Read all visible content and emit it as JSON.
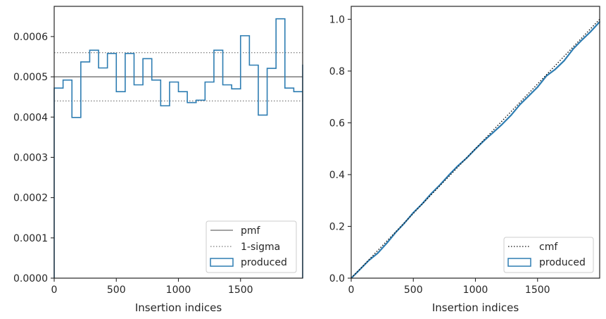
{
  "chart_data": [
    {
      "type": "histogram-step",
      "xlabel": "Insertion indices",
      "ylabel": "",
      "xlim": [
        0,
        2000
      ],
      "ylim": [
        0,
        0.000675
      ],
      "xticks": [
        0,
        500,
        1000,
        1500
      ],
      "xtick_labels": [
        "0",
        "500",
        "1000",
        "1500"
      ],
      "yticks": [
        0,
        0.0001,
        0.0002,
        0.0003,
        0.0004,
        0.0005,
        0.0006
      ],
      "ytick_labels": [
        "0.0000",
        "0.0001",
        "0.0002",
        "0.0003",
        "0.0004",
        "0.0005",
        "0.0006"
      ],
      "bin_width": 71.43,
      "bin_values": [
        0.000472,
        0.000492,
        0.000399,
        0.000537,
        0.000566,
        0.000522,
        0.000558,
        0.000463,
        0.000558,
        0.00048,
        0.000545,
        0.000492,
        0.000428,
        0.000487,
        0.000463,
        0.000436,
        0.000442,
        0.000487,
        0.000566,
        0.00048,
        0.00047,
        0.000602,
        0.000529,
        0.000405,
        0.000521,
        0.000644,
        0.000472,
        0.000463,
        0.000529
      ],
      "pmf": 0.0005,
      "sigma_band": [
        0.00044,
        0.00056
      ],
      "legend": [
        "pmf",
        "1-sigma",
        "produced"
      ],
      "legend_loc": "lower right",
      "colors": {
        "produced": "#2e7db2",
        "pmf": "#6e6e6e",
        "sigma": "#7a7a7a"
      }
    },
    {
      "type": "line",
      "xlabel": "Insertion indices",
      "ylabel": "",
      "xlim": [
        0,
        2000
      ],
      "ylim": [
        0,
        1.05
      ],
      "xticks": [
        0,
        500,
        1000,
        1500
      ],
      "xtick_labels": [
        "0",
        "500",
        "1000",
        "1500"
      ],
      "yticks": [
        0,
        0.2,
        0.4,
        0.6,
        0.8,
        1.0
      ],
      "ytick_labels": [
        "0.0",
        "0.2",
        "0.4",
        "0.6",
        "0.8",
        "1.0"
      ],
      "cmf": {
        "x": [
          0,
          2000
        ],
        "y": [
          0,
          1
        ]
      },
      "produced": {
        "x": [
          0,
          71,
          143,
          214,
          286,
          357,
          429,
          500,
          571,
          643,
          714,
          786,
          857,
          929,
          1000,
          1071,
          1143,
          1214,
          1286,
          1357,
          1429,
          1500,
          1571,
          1643,
          1714,
          1786,
          1857,
          1929,
          2000
        ],
        "y": [
          0,
          0.034,
          0.069,
          0.097,
          0.135,
          0.176,
          0.213,
          0.253,
          0.287,
          0.326,
          0.36,
          0.398,
          0.433,
          0.464,
          0.499,
          0.532,
          0.563,
          0.594,
          0.629,
          0.67,
          0.704,
          0.738,
          0.781,
          0.807,
          0.84,
          0.885,
          0.92,
          0.953,
          0.99
        ]
      },
      "legend": [
        "cmf",
        "produced"
      ],
      "legend_loc": "lower right",
      "colors": {
        "produced": "#2e7db2",
        "cmf": "#111111"
      }
    }
  ]
}
